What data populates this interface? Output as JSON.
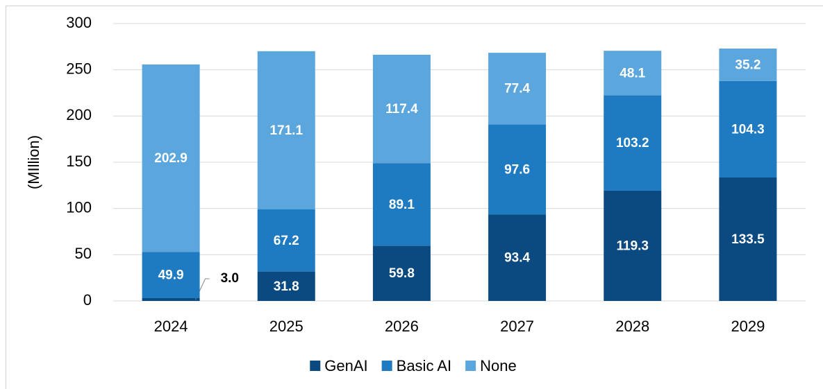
{
  "chart_data": {
    "type": "stacked_bar",
    "y_label": "(MIllion)",
    "categories": [
      "2024",
      "2025",
      "2026",
      "2027",
      "2028",
      "2029"
    ],
    "series": [
      {
        "name": "GenAI",
        "color": "#0b4a80",
        "values": [
          3.0,
          31.8,
          59.8,
          93.4,
          119.3,
          133.5
        ]
      },
      {
        "name": "Basic AI",
        "color": "#1f7bc1",
        "values": [
          49.9,
          67.2,
          89.1,
          97.6,
          103.2,
          104.3
        ]
      },
      {
        "name": "None",
        "color": "#5ba6dc",
        "values": [
          202.9,
          171.1,
          117.4,
          77.4,
          48.1,
          35.2
        ]
      }
    ],
    "ylim": [
      0,
      300
    ],
    "yticks": [
      0,
      50,
      100,
      150,
      200,
      250,
      300
    ],
    "grid": true,
    "legend": "bottom"
  }
}
